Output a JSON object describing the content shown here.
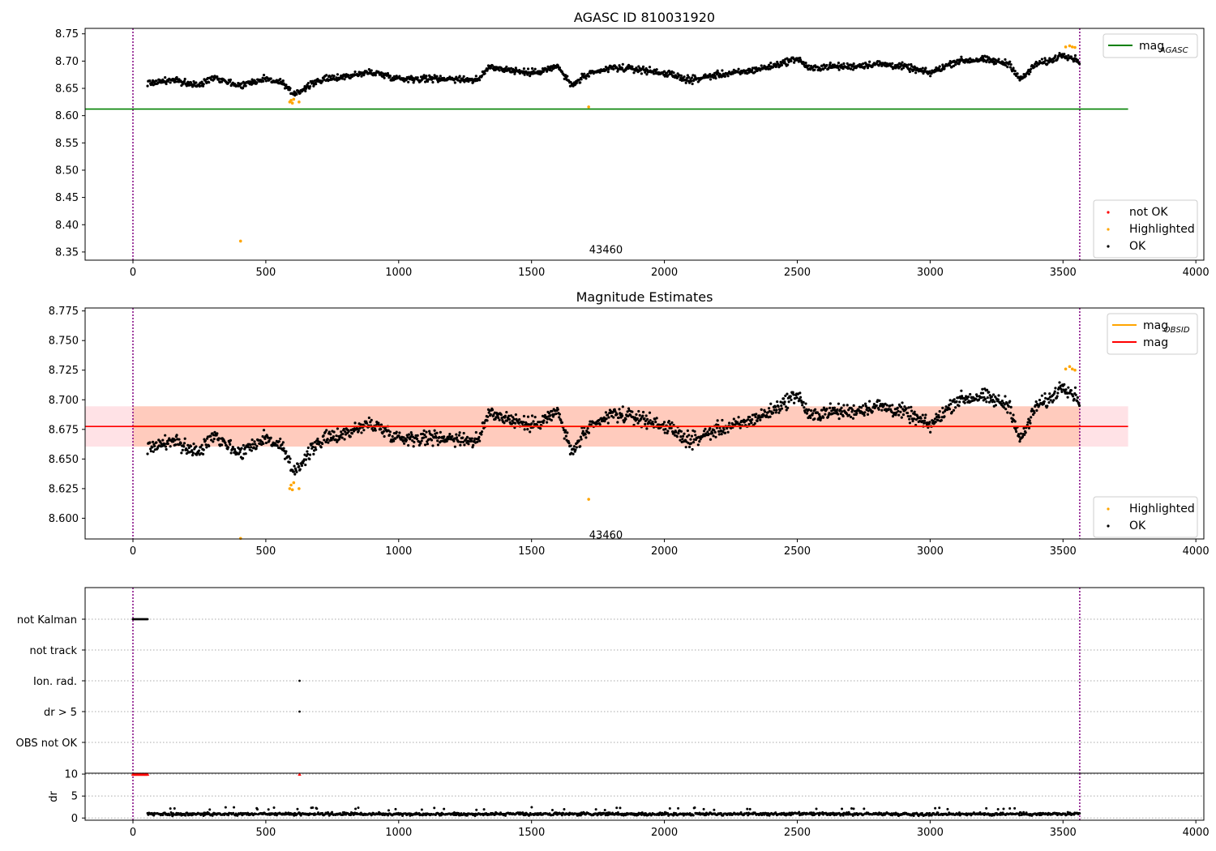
{
  "chart_data": [
    {
      "type": "scatter",
      "title": "AGASC ID 810031920",
      "xlim": [
        -180,
        4030
      ],
      "ylim": [
        8.335,
        8.76
      ],
      "xticks": [
        0,
        500,
        1000,
        1500,
        2000,
        2500,
        3000,
        3500,
        4000
      ],
      "yticks": [
        8.35,
        8.4,
        8.45,
        8.5,
        8.55,
        8.6,
        8.65,
        8.7,
        8.75
      ],
      "ytick_decimals": 2,
      "hline": {
        "name": "mag",
        "subscript": "AGASC",
        "y": 8.612,
        "x_end": 3745,
        "color": "#008000"
      },
      "vlines": {
        "x": [
          0,
          3563
        ],
        "color": "#800080"
      },
      "annotation": {
        "text": "43460",
        "x": 1780,
        "y": 8.348
      },
      "ok_series": {
        "name": "OK",
        "color": "#000000",
        "x_start": 55,
        "x_end": 3563,
        "knots_x": [
          55,
          150,
          250,
          300,
          400,
          450,
          500,
          560,
          600,
          640,
          700,
          800,
          900,
          1000,
          1100,
          1200,
          1300,
          1340,
          1400,
          1500,
          1600,
          1650,
          1700,
          1800,
          1900,
          2000,
          2100,
          2200,
          2300,
          2400,
          2500,
          2550,
          2600,
          2700,
          2800,
          2900,
          3000,
          3100,
          3200,
          3300,
          3340,
          3400,
          3450,
          3500,
          3563
        ],
        "knots_y": [
          8.66,
          8.665,
          8.655,
          8.672,
          8.655,
          8.662,
          8.668,
          8.66,
          8.64,
          8.648,
          8.665,
          8.672,
          8.68,
          8.668,
          8.668,
          8.668,
          8.665,
          8.69,
          8.685,
          8.678,
          8.69,
          8.655,
          8.672,
          8.688,
          8.685,
          8.678,
          8.665,
          8.675,
          8.68,
          8.69,
          8.705,
          8.685,
          8.69,
          8.69,
          8.695,
          8.69,
          8.678,
          8.7,
          8.703,
          8.695,
          8.665,
          8.695,
          8.7,
          8.713,
          8.7
        ],
        "spread": 0.009
      },
      "highlighted": {
        "name": "Highlighted",
        "color": "#FFA500",
        "x": [
          405,
          590,
          595,
          600,
          605,
          625,
          1715,
          3510,
          3525,
          3535,
          3545
        ],
        "y": [
          8.37,
          8.625,
          8.628,
          8.623,
          8.63,
          8.625,
          8.616,
          8.726,
          8.728,
          8.726,
          8.725
        ]
      },
      "legend_top": [
        {
          "label": "mag",
          "sub": "AGASC",
          "kind": "line",
          "color": "#008000"
        }
      ],
      "legend_bottom": [
        {
          "label": "not OK",
          "kind": "dot",
          "color": "#FF0000"
        },
        {
          "label": "Highlighted",
          "kind": "dot",
          "color": "#FFA500"
        },
        {
          "label": "OK",
          "kind": "dot",
          "color": "#000000"
        }
      ]
    },
    {
      "type": "scatter",
      "title": "Magnitude Estimates",
      "xlim": [
        -180,
        4030
      ],
      "ylim": [
        8.5825,
        8.7775
      ],
      "xticks": [
        0,
        500,
        1000,
        1500,
        2000,
        2500,
        3000,
        3500,
        4000
      ],
      "yticks": [
        8.6,
        8.625,
        8.65,
        8.675,
        8.7,
        8.725,
        8.75,
        8.775
      ],
      "ytick_decimals": 3,
      "band": {
        "x_end": 3745,
        "y_low": 8.6605,
        "y_high": 8.6945,
        "color": "#FFB6C1"
      },
      "band_inner": {
        "x_start": 0,
        "x_end": 3563,
        "color": "#FFA070"
      },
      "hline": {
        "name": "mag",
        "y": 8.6775,
        "x_end": 3745,
        "color": "#FF0000"
      },
      "obsid_line": {
        "name": "mag",
        "subscript": "OBSID",
        "y": 8.6775,
        "x_start": 0,
        "x_end": 3563,
        "color": "#FFA500"
      },
      "vlines": {
        "x": [
          0,
          3563
        ],
        "color": "#800080"
      },
      "annotation": {
        "text": "43460",
        "x": 1780,
        "y": 8.5855
      },
      "highlighted": {
        "name": "Highlighted",
        "color": "#FFA500",
        "x": [
          405,
          590,
          595,
          600,
          605,
          625,
          1715,
          3510,
          3525,
          3535,
          3545
        ],
        "y": [
          8.583,
          8.625,
          8.628,
          8.624,
          8.63,
          8.625,
          8.616,
          8.726,
          8.728,
          8.726,
          8.725
        ]
      },
      "legend_top": [
        {
          "label": "mag",
          "sub": "OBSID",
          "kind": "line",
          "color": "#FFA500"
        },
        {
          "label": "mag",
          "kind": "line",
          "color": "#FF0000"
        }
      ],
      "legend_bottom": [
        {
          "label": "Highlighted",
          "kind": "dot",
          "color": "#FFA500"
        },
        {
          "label": "OK",
          "kind": "dot",
          "color": "#000000"
        }
      ]
    },
    {
      "type": "scatter",
      "categories": [
        "not Kalman",
        "not track",
        "Ion. rad.",
        "dr > 5",
        "OBS not OK"
      ],
      "xlim": [
        -180,
        4030
      ],
      "xticks": [
        0,
        500,
        1000,
        1500,
        2000,
        2500,
        3000,
        3500,
        4000
      ],
      "flags": [
        {
          "category": "not Kalman",
          "x_start": 0,
          "x_end": 55,
          "count": 17
        },
        {
          "category": "Ion. rad.",
          "x": [
            627
          ]
        },
        {
          "category": "dr > 5",
          "x": [
            627
          ]
        }
      ],
      "vlines": {
        "x": [
          0,
          3563
        ],
        "color": "#800080"
      }
    },
    {
      "type": "scatter",
      "ylabel": "dr",
      "xlim": [
        -180,
        4030
      ],
      "ylim": [
        -0.5,
        10.2
      ],
      "yticks": [
        0,
        5,
        10
      ],
      "xticks": [
        0,
        500,
        1000,
        1500,
        2000,
        2500,
        3000,
        3500,
        4000
      ],
      "clipped_points": {
        "x_start": 0,
        "x_end": 55,
        "count": 14,
        "extra_x": [
          627
        ],
        "y": 10,
        "color": "#FF0000"
      },
      "ok_series": {
        "x_start": 55,
        "x_end": 3563,
        "mean": 0.9,
        "spread": 0.35
      },
      "vlines": {
        "x": [
          0,
          3563
        ],
        "color": "#800080"
      }
    }
  ]
}
